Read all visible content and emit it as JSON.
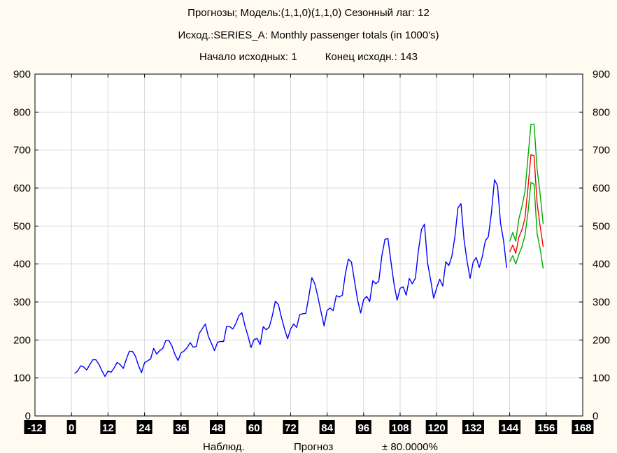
{
  "chart_data": {
    "type": "line",
    "title": "Прогнозы; Модель:(1,1,0)(1,1,0) Сезонный лаг: 12",
    "subtitle": "Исход.:SERIES_A: Monthly passenger totals (in 1000's)",
    "range_start_label": "Начало исходных: 1",
    "range_end_label": "Конец исходн.: 143",
    "xlim": [
      -12,
      168
    ],
    "ylim": [
      0,
      900
    ],
    "x_ticks": [
      "-12",
      "0",
      "12",
      "24",
      "36",
      "48",
      "60",
      "72",
      "84",
      "96",
      "108",
      "120",
      "132",
      "144",
      "156",
      "168"
    ],
    "x_tick_values": [
      -12,
      0,
      12,
      24,
      36,
      48,
      60,
      72,
      84,
      96,
      108,
      120,
      132,
      144,
      156,
      168
    ],
    "y_ticks": [
      "0",
      "100",
      "200",
      "300",
      "400",
      "500",
      "600",
      "700",
      "800",
      "900"
    ],
    "y_tick_values": [
      0,
      100,
      200,
      300,
      400,
      500,
      600,
      700,
      800,
      900
    ],
    "grid": true,
    "legend_labels": [
      "Наблюд.",
      "Прогноз",
      "± 80.0000%"
    ],
    "series": [
      {
        "color": "#0000ff",
        "x_start": 1,
        "values": [
          112,
          118,
          132,
          129,
          121,
          135,
          148,
          148,
          136,
          119,
          104,
          118,
          115,
          126,
          141,
          135,
          125,
          149,
          170,
          170,
          158,
          133,
          114,
          140,
          145,
          150,
          178,
          163,
          172,
          178,
          199,
          199,
          184,
          162,
          146,
          166,
          171,
          180,
          193,
          181,
          183,
          218,
          230,
          242,
          209,
          191,
          172,
          194,
          196,
          196,
          236,
          235,
          229,
          243,
          264,
          272,
          237,
          211,
          180,
          201,
          204,
          188,
          235,
          227,
          234,
          264,
          302,
          293,
          259,
          229,
          203,
          229,
          242,
          233,
          267,
          269,
          270,
          315,
          364,
          347,
          312,
          274,
          237,
          278,
          284,
          277,
          317,
          313,
          318,
          374,
          413,
          405,
          355,
          306,
          271,
          306,
          315,
          301,
          356,
          348,
          355,
          422,
          465,
          467,
          404,
          347,
          305,
          336,
          340,
          318,
          362,
          348,
          363,
          435,
          491,
          505,
          404,
          359,
          310,
          337,
          360,
          342,
          406,
          396,
          420,
          472,
          548,
          559,
          463,
          407,
          362,
          405,
          417,
          391,
          419,
          461,
          472,
          535,
          622,
          606,
          508,
          461,
          390
        ]
      },
      {
        "color": "#ff0000",
        "x_start": 144,
        "values": [
          432,
          450,
          428,
          470,
          490,
          520,
          600,
          688,
          685,
          560,
          500,
          445
        ]
      },
      {
        "color": "#00aa00",
        "x_start": 144,
        "values": [
          460,
          483,
          460,
          518,
          550,
          590,
          680,
          768,
          768,
          650,
          585,
          505
        ]
      },
      {
        "color": "#00aa00",
        "x_start": 144,
        "values": [
          406,
          422,
          400,
          425,
          445,
          475,
          535,
          615,
          610,
          480,
          440,
          388
        ]
      }
    ]
  }
}
